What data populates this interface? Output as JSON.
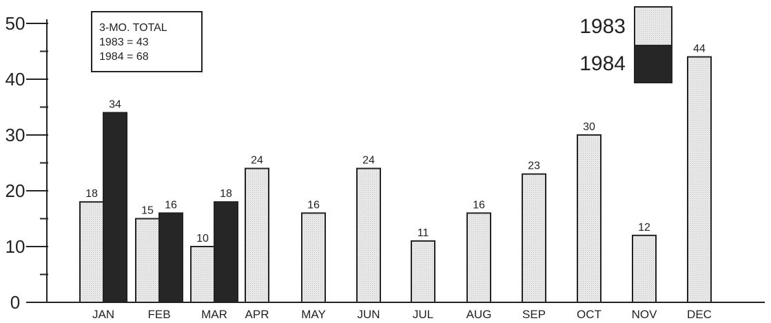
{
  "chart_data": {
    "type": "bar",
    "categories": [
      "JAN",
      "FEB",
      "MAR",
      "APR",
      "MAY",
      "JUN",
      "JUL",
      "AUG",
      "SEP",
      "OCT",
      "NOV",
      "DEC"
    ],
    "series": [
      {
        "name": "1983",
        "color": "#e6e6e6",
        "values": [
          18,
          15,
          10,
          24,
          16,
          24,
          11,
          16,
          23,
          30,
          12,
          44
        ]
      },
      {
        "name": "1984",
        "color": "#262626",
        "values": [
          34,
          16,
          18,
          null,
          null,
          null,
          null,
          null,
          null,
          null,
          null,
          null
        ]
      }
    ],
    "ylim": [
      0,
      50
    ],
    "yticks": [
      0,
      10,
      20,
      30,
      40,
      50
    ],
    "legend_placement": "top-right",
    "annotation": {
      "lines": [
        "3-MO. TOTAL",
        "1983 = 43",
        "1984 = 68"
      ],
      "placement": "top-left"
    }
  }
}
